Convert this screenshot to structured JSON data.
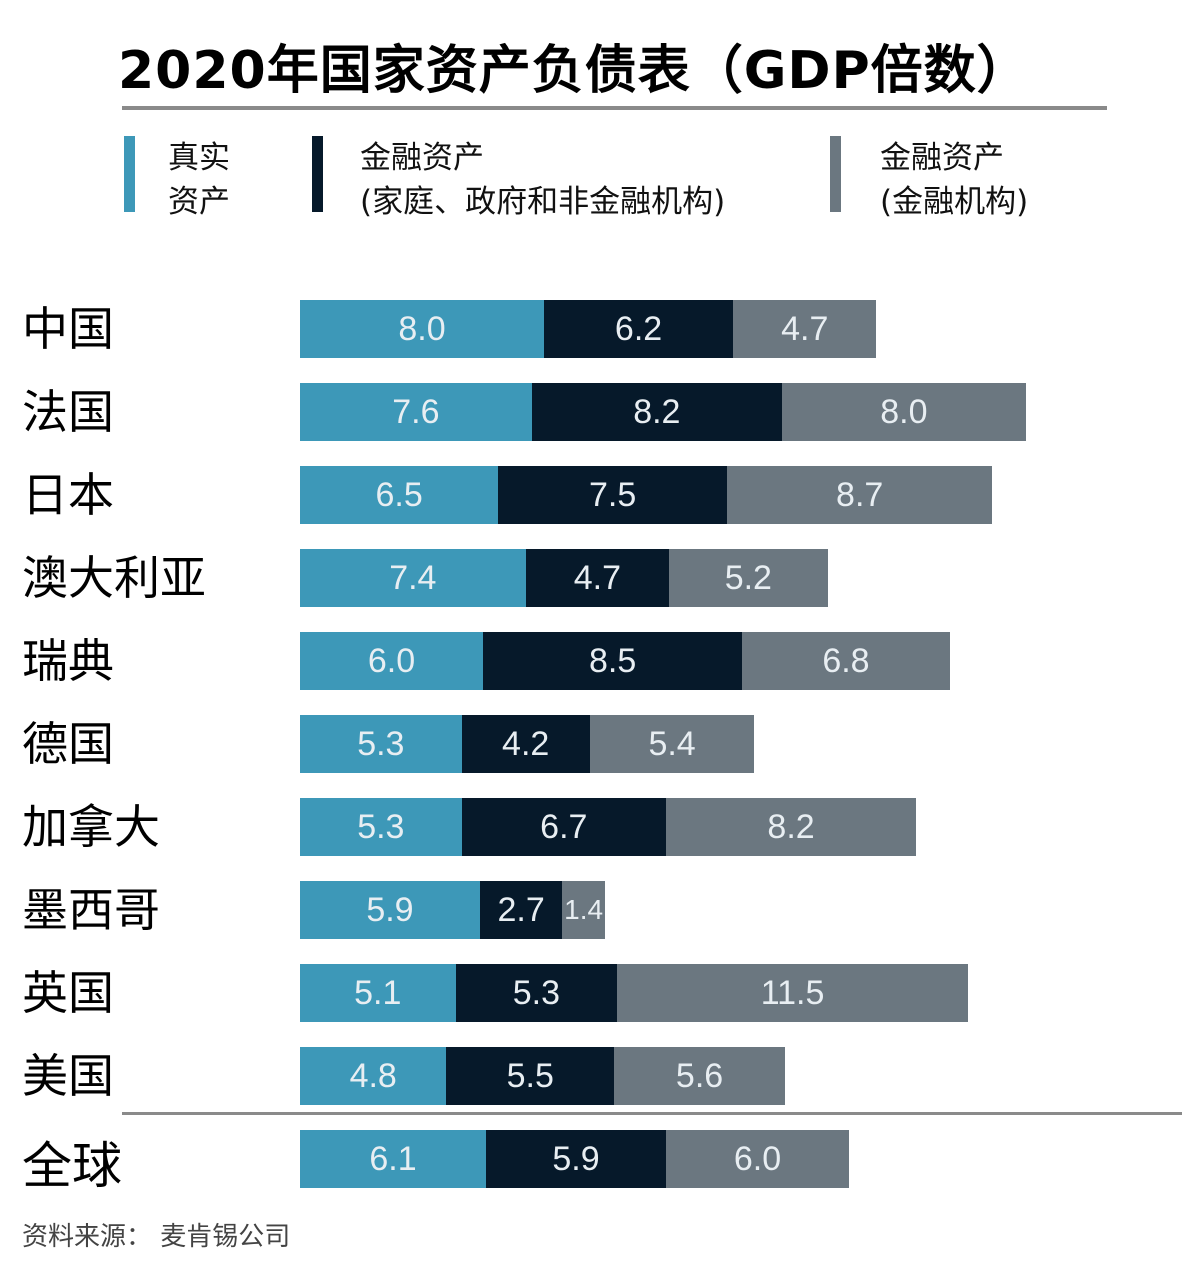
{
  "chart_data": {
    "type": "bar",
    "orientation": "horizontal",
    "stacked": true,
    "title": "2020年国家资产负债表（GDP倍数）",
    "xlabel": "",
    "ylabel": "",
    "grid": false,
    "legend_position": "top",
    "categories": [
      "中国",
      "法国",
      "日本",
      "澳大利亚",
      "瑞典",
      "德国",
      "加拿大",
      "墨西哥",
      "英国",
      "美国",
      "全球"
    ],
    "series": [
      {
        "name": "真实资产",
        "color": "#3d98b8",
        "values": [
          8.0,
          7.6,
          6.5,
          7.4,
          6.0,
          5.3,
          5.3,
          5.9,
          5.1,
          4.8,
          6.1
        ],
        "labels": [
          "8.0",
          "7.6",
          "6.5",
          "7.4",
          "6.0",
          "5.3",
          "5.3",
          "5.9",
          "5.1",
          "4.8",
          "6.1"
        ]
      },
      {
        "name": "金融资产(家庭、政府和非金融机构)",
        "color": "#06192a",
        "values": [
          6.2,
          8.2,
          7.5,
          4.7,
          8.5,
          4.2,
          6.7,
          2.7,
          5.3,
          5.5,
          5.9
        ],
        "labels": [
          "6.2",
          "8.2",
          "7.5",
          "4.7",
          "8.5",
          "4.2",
          "6.7",
          "2.7",
          "5.3",
          "5.5",
          "5.9"
        ]
      },
      {
        "name": "金融资产(金融机构)",
        "color": "#6b7780",
        "values": [
          4.7,
          8.0,
          8.7,
          5.2,
          6.8,
          5.4,
          8.2,
          1.4,
          11.5,
          5.6,
          6.0
        ],
        "labels": [
          "4.7",
          "8.0",
          "8.7",
          "5.2",
          "6.8",
          "5.4",
          "8.2",
          "1.4",
          "11.5",
          "5.6",
          "6.0"
        ]
      }
    ],
    "source": "资料来源：麦肯锡公司"
  },
  "header": {
    "title": "2020年国家资产负债表（GDP倍数）"
  },
  "legend": [
    {
      "label": "真实\n资产",
      "color": "#3d98b8"
    },
    {
      "label": "金融资产\n(家庭、政府和非金融机构)",
      "color": "#06192a"
    },
    {
      "label": "金融资产\n(金融机构)",
      "color": "#6b7780"
    }
  ],
  "footer": {
    "source": "资料来源：  麦肯锡公司"
  }
}
